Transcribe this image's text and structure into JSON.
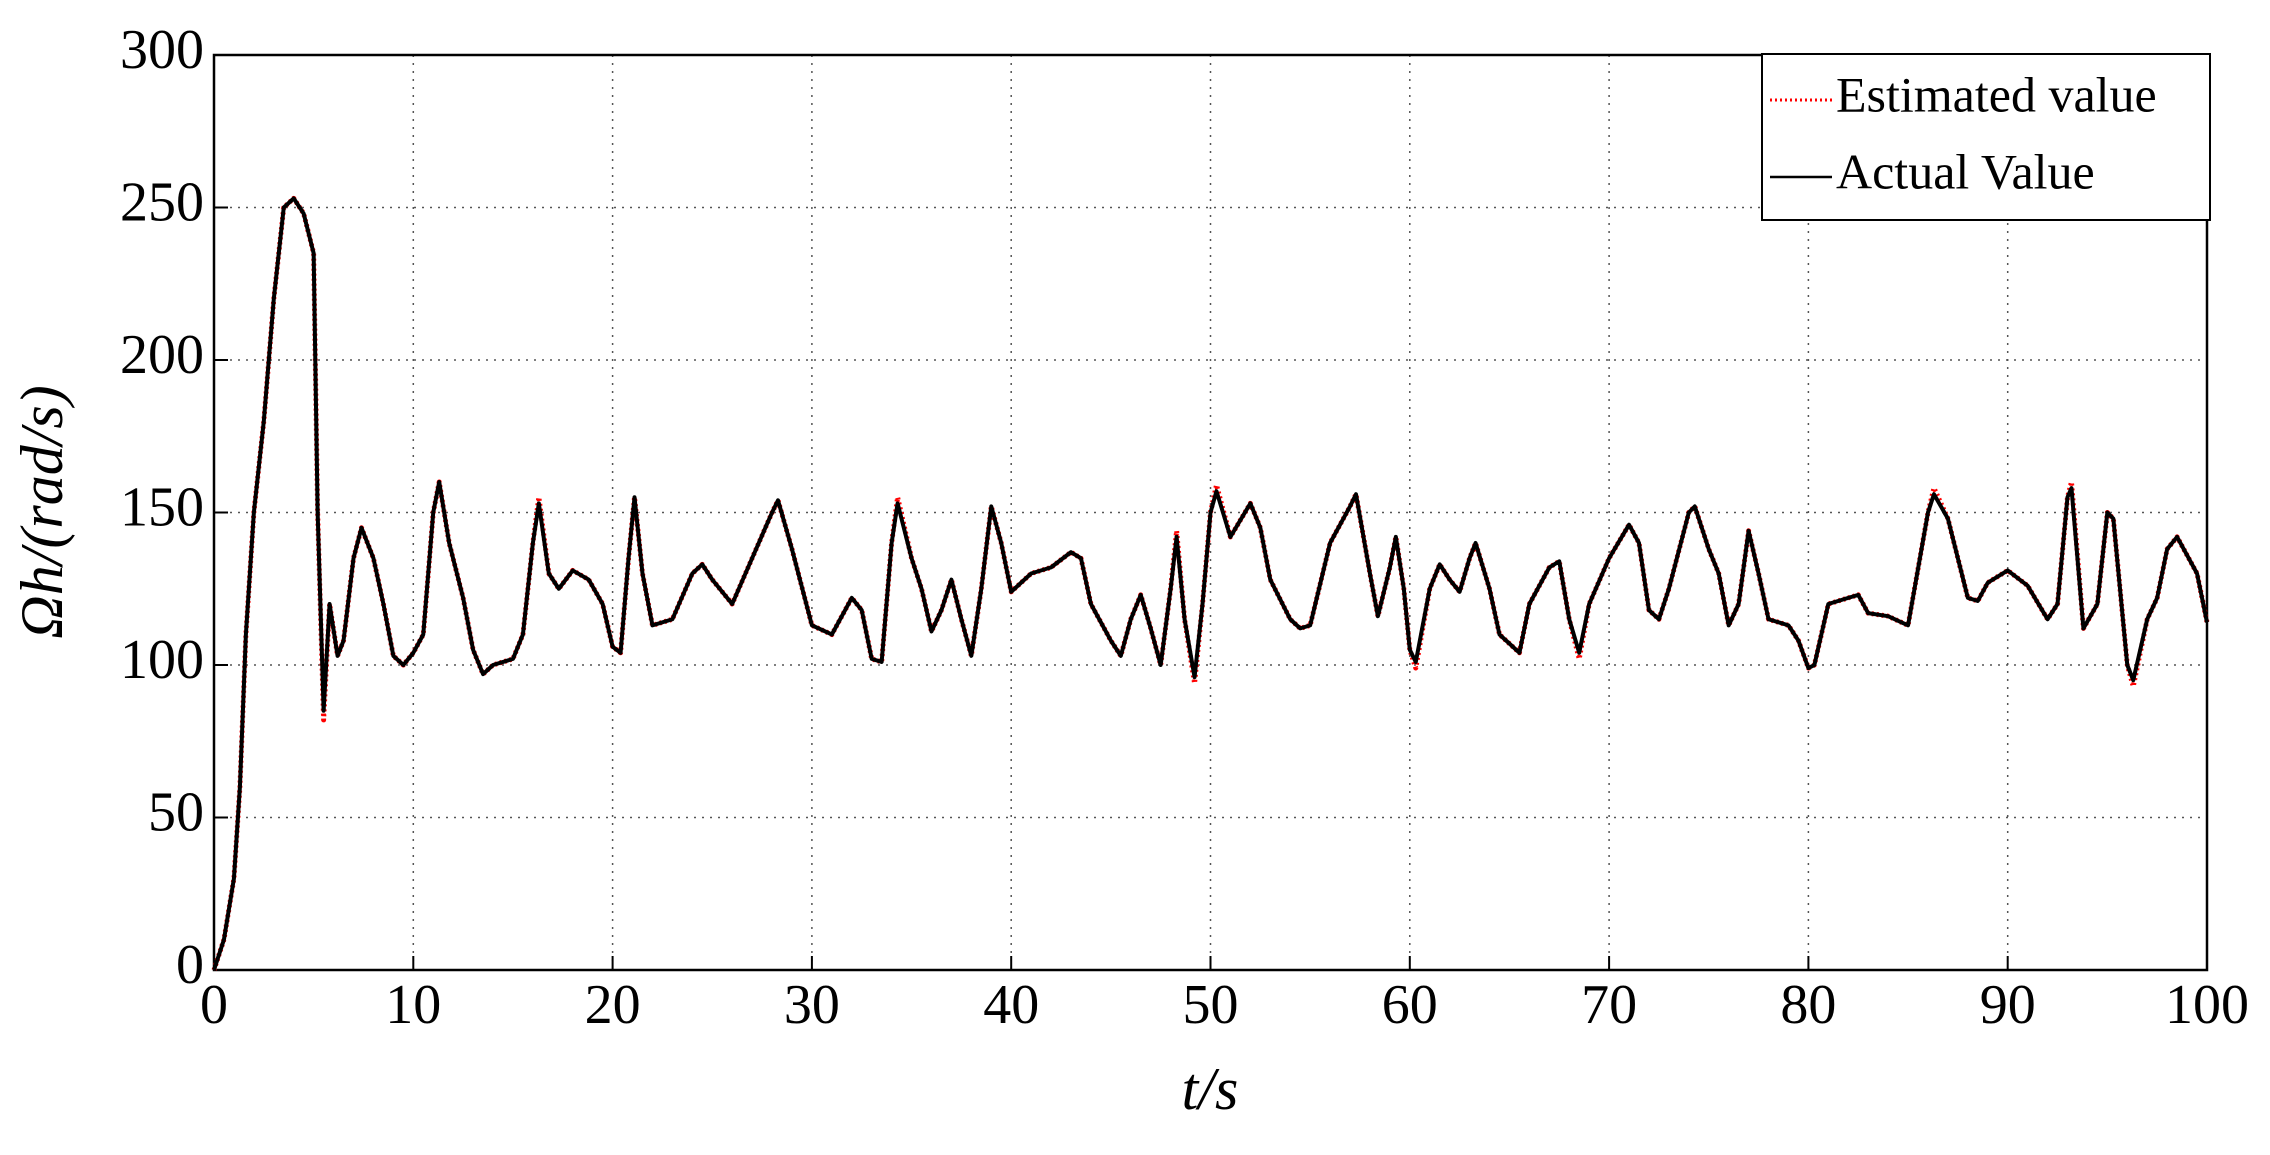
{
  "chart_data": {
    "type": "line",
    "xlabel": "t/s",
    "ylabel": "Ωh/(rad/s)",
    "x": [
      0,
      0.5,
      1,
      1.3,
      1.6,
      2,
      2.5,
      3,
      3.5,
      4,
      4.5,
      5,
      5.2,
      5.5,
      5.8,
      6.2,
      6.5,
      7,
      7.4,
      8,
      8.5,
      9,
      9.5,
      10,
      10.5,
      11,
      11.3,
      11.8,
      12.5,
      13,
      13.5,
      14,
      15,
      15.5,
      16,
      16.3,
      16.8,
      17.3,
      18,
      18.8,
      19.5,
      20,
      20.4,
      20.8,
      21.1,
      21.5,
      22,
      23,
      24,
      24.5,
      25,
      26,
      27,
      28,
      28.3,
      29,
      30,
      31,
      32,
      32.5,
      33,
      33.5,
      34,
      34.3,
      35,
      35.5,
      36,
      36.5,
      37,
      37.5,
      38,
      38.5,
      39,
      39.5,
      40,
      41,
      42,
      43,
      43.5,
      44,
      45,
      45.5,
      46,
      46.5,
      47,
      47.5,
      48,
      48.3,
      48.7,
      49.2,
      49.6,
      50,
      50.3,
      51,
      52,
      52.5,
      53,
      54,
      54.5,
      55,
      56,
      57,
      57.3,
      58,
      58.4,
      59,
      59.3,
      59.7,
      60,
      60.3,
      61,
      61.5,
      62,
      62.5,
      63,
      63.3,
      64,
      64.5,
      65,
      65.5,
      66,
      67,
      67.5,
      68,
      68.5,
      69,
      70,
      71,
      71.5,
      72,
      72.5,
      73,
      74,
      74.3,
      75,
      75.5,
      76,
      76.5,
      77,
      77.5,
      78,
      79,
      79.5,
      80,
      80.3,
      81,
      82,
      82.5,
      83,
      84,
      85,
      86,
      86.3,
      87,
      88,
      88.5,
      89,
      90,
      91,
      92,
      92.5,
      93,
      93.2,
      93.8,
      94.5,
      95,
      95.3,
      96,
      96.3,
      97,
      97.5,
      98,
      98.5,
      99,
      99.5,
      100
    ],
    "series": [
      {
        "name": "Estimated value",
        "color": "#ff0000",
        "linestyle": "dotted",
        "values": [
          0,
          10,
          30,
          60,
          110,
          150,
          180,
          220,
          250,
          253,
          248,
          235,
          150,
          82,
          120,
          103,
          108,
          135,
          145,
          135,
          120,
          103,
          100,
          104,
          110,
          150,
          160,
          140,
          122,
          105,
          97,
          100,
          102,
          110,
          140,
          155,
          130,
          125,
          131,
          128,
          120,
          106,
          104,
          135,
          155,
          130,
          113,
          115,
          130,
          133,
          128,
          120,
          135,
          150,
          154,
          138,
          113,
          110,
          122,
          118,
          102,
          101,
          140,
          155,
          135,
          125,
          111,
          118,
          128,
          115,
          103,
          125,
          152,
          140,
          124,
          130,
          132,
          137,
          135,
          120,
          108,
          103,
          115,
          123,
          112,
          100,
          125,
          144,
          115,
          94,
          120,
          150,
          159,
          142,
          153,
          145,
          128,
          115,
          112,
          113,
          140,
          152,
          156,
          130,
          116,
          132,
          142,
          125,
          105,
          99,
          125,
          133,
          128,
          124,
          135,
          140,
          125,
          110,
          107,
          104,
          120,
          132,
          134,
          115,
          102,
          120,
          135,
          146,
          140,
          118,
          115,
          125,
          150,
          152,
          138,
          130,
          113,
          120,
          144,
          130,
          115,
          113,
          108,
          99,
          100,
          120,
          122,
          123,
          117,
          116,
          113,
          150,
          158,
          148,
          122,
          121,
          127,
          131,
          126,
          115,
          120,
          155,
          160,
          112,
          120,
          150,
          148,
          100,
          93,
          115,
          122,
          138,
          142,
          136,
          130,
          114
        ]
      },
      {
        "name": "Actual Value",
        "color": "#000000",
        "linestyle": "solid",
        "values": [
          0,
          10,
          30,
          60,
          110,
          150,
          180,
          220,
          250,
          253,
          248,
          235,
          150,
          85,
          120,
          103,
          108,
          135,
          145,
          135,
          120,
          103,
          100,
          104,
          110,
          150,
          160,
          140,
          122,
          105,
          97,
          100,
          102,
          110,
          140,
          153,
          130,
          125,
          131,
          128,
          120,
          106,
          104,
          135,
          155,
          130,
          113,
          115,
          130,
          133,
          128,
          120,
          135,
          150,
          154,
          138,
          113,
          110,
          122,
          118,
          102,
          101,
          140,
          153,
          135,
          125,
          111,
          118,
          128,
          115,
          103,
          125,
          152,
          140,
          124,
          130,
          132,
          137,
          135,
          120,
          108,
          103,
          115,
          123,
          112,
          100,
          125,
          142,
          115,
          96,
          120,
          150,
          157,
          142,
          153,
          145,
          128,
          115,
          112,
          113,
          140,
          152,
          156,
          130,
          116,
          132,
          142,
          125,
          105,
          101,
          125,
          133,
          128,
          124,
          135,
          140,
          125,
          110,
          107,
          104,
          120,
          132,
          134,
          115,
          104,
          120,
          135,
          146,
          140,
          118,
          115,
          125,
          150,
          152,
          138,
          130,
          113,
          120,
          144,
          130,
          115,
          113,
          108,
          99,
          100,
          120,
          122,
          123,
          117,
          116,
          113,
          150,
          156,
          148,
          122,
          121,
          127,
          131,
          126,
          115,
          120,
          155,
          158,
          112,
          120,
          150,
          148,
          100,
          95,
          115,
          122,
          138,
          142,
          136,
          130,
          114
        ]
      }
    ],
    "xlim": [
      0,
      100
    ],
    "xticks": [
      0,
      10,
      20,
      30,
      40,
      50,
      60,
      70,
      80,
      90,
      100
    ],
    "ylim": [
      0,
      300
    ],
    "yticks": [
      0,
      50,
      100,
      150,
      200,
      250,
      300
    ],
    "grid": true,
    "legend": "upper right"
  }
}
